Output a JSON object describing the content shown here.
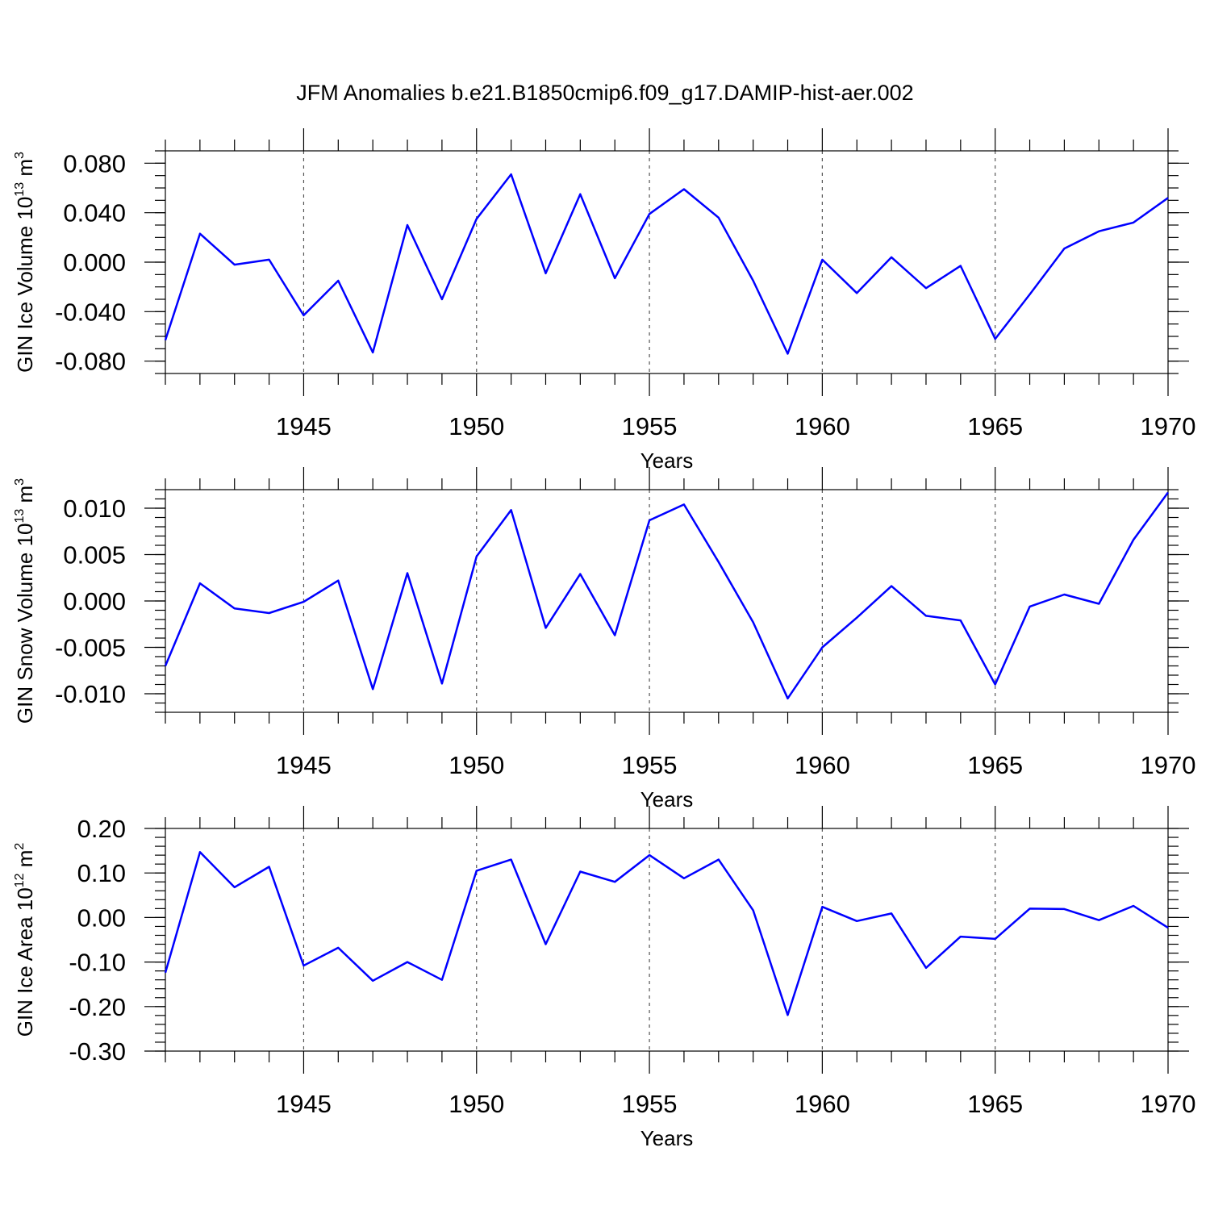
{
  "figure": {
    "title": "JFM Anomalies b.e21.B1850cmip6.f09_g17.DAMIP-hist-aer.002"
  },
  "colors": {
    "line": "#0000ff",
    "axes": "#000000",
    "grid": "#555555"
  },
  "chart_data": [
    {
      "type": "line",
      "title": "",
      "xlabel": "Years",
      "ylabel": {
        "text": "GIN Ice Volume 10",
        "exp": "13",
        "unit": " m",
        "unit_exp": "3"
      },
      "xlim": [
        1941,
        1970
      ],
      "ylim": [
        -0.09,
        0.09
      ],
      "xticks": [
        1945,
        1950,
        1955,
        1960,
        1965,
        1970
      ],
      "xtick_labels": [
        "1945",
        "1950",
        "1955",
        "1960",
        "1965",
        "1970"
      ],
      "yticks": [
        0.08,
        0.04,
        0.0,
        -0.04,
        -0.08
      ],
      "ytick_labels": [
        "0.080",
        "0.040",
        "0.000",
        "-0.040",
        "-0.080"
      ],
      "y_minor_step": 0.01,
      "grid": "vertical dashed at major x ticks",
      "x": [
        1941,
        1942,
        1943,
        1944,
        1945,
        1946,
        1947,
        1948,
        1949,
        1950,
        1951,
        1952,
        1953,
        1954,
        1955,
        1956,
        1957,
        1958,
        1959,
        1960,
        1961,
        1962,
        1963,
        1964,
        1965,
        1966,
        1967,
        1968,
        1969,
        1970
      ],
      "series": [
        {
          "values": [
            -0.063,
            0.023,
            -0.002,
            0.002,
            -0.043,
            -0.015,
            -0.073,
            0.03,
            -0.03,
            0.035,
            0.071,
            -0.009,
            0.055,
            -0.013,
            0.039,
            0.059,
            0.036,
            -0.015,
            -0.074,
            0.002,
            -0.025,
            0.004,
            -0.021,
            -0.003,
            -0.062,
            -0.026,
            0.011,
            0.025,
            0.032,
            0.052
          ]
        }
      ]
    },
    {
      "type": "line",
      "title": "",
      "xlabel": "Years",
      "ylabel": {
        "text": "GIN Snow Volume 10",
        "exp": "13",
        "unit": " m",
        "unit_exp": "3"
      },
      "xlim": [
        1941,
        1970
      ],
      "ylim": [
        -0.012,
        0.012
      ],
      "xticks": [
        1945,
        1950,
        1955,
        1960,
        1965,
        1970
      ],
      "xtick_labels": [
        "1945",
        "1950",
        "1955",
        "1960",
        "1965",
        "1970"
      ],
      "yticks": [
        0.01,
        0.005,
        0.0,
        -0.005,
        -0.01
      ],
      "ytick_labels": [
        "0.010",
        "0.005",
        "0.000",
        "-0.005",
        "-0.010"
      ],
      "y_minor_step": 0.001,
      "grid": "vertical dashed at major x ticks",
      "x": [
        1941,
        1942,
        1943,
        1944,
        1945,
        1946,
        1947,
        1948,
        1949,
        1950,
        1951,
        1952,
        1953,
        1954,
        1955,
        1956,
        1957,
        1958,
        1959,
        1960,
        1961,
        1962,
        1963,
        1964,
        1965,
        1966,
        1967,
        1968,
        1969,
        1970
      ],
      "series": [
        {
          "values": [
            -0.007,
            0.0019,
            -0.0008,
            -0.0013,
            -0.0001,
            0.0022,
            -0.0095,
            0.003,
            -0.0089,
            0.0048,
            0.0098,
            -0.0029,
            0.0029,
            -0.0037,
            0.0087,
            0.0104,
            0.0042,
            -0.0023,
            -0.0105,
            -0.005,
            -0.0018,
            0.0016,
            -0.0016,
            -0.0021,
            -0.009,
            -0.0006,
            0.0007,
            -0.0003,
            0.0066,
            0.0117
          ]
        }
      ]
    },
    {
      "type": "line",
      "title": "",
      "xlabel": "Years",
      "ylabel": {
        "text": "GIN Ice Area 10",
        "exp": "12",
        "unit": " m",
        "unit_exp": "2"
      },
      "xlim": [
        1941,
        1970
      ],
      "ylim": [
        -0.3,
        0.2
      ],
      "xticks": [
        1945,
        1950,
        1955,
        1960,
        1965,
        1970
      ],
      "xtick_labels": [
        "1945",
        "1950",
        "1955",
        "1960",
        "1965",
        "1970"
      ],
      "yticks": [
        0.2,
        0.1,
        0.0,
        -0.1,
        -0.2,
        -0.3
      ],
      "ytick_labels": [
        "0.20",
        "0.10",
        "0.00",
        "-0.10",
        "-0.20",
        "-0.30"
      ],
      "y_minor_step": 0.02,
      "grid": "vertical dashed at major x ticks",
      "x": [
        1941,
        1942,
        1943,
        1944,
        1945,
        1946,
        1947,
        1948,
        1949,
        1950,
        1951,
        1952,
        1953,
        1954,
        1955,
        1956,
        1957,
        1958,
        1959,
        1960,
        1961,
        1962,
        1963,
        1964,
        1965,
        1966,
        1967,
        1968,
        1969,
        1970
      ],
      "series": [
        {
          "values": [
            -0.124,
            0.147,
            0.068,
            0.114,
            -0.108,
            -0.068,
            -0.142,
            -0.1,
            -0.14,
            0.105,
            0.13,
            -0.06,
            0.103,
            0.08,
            0.14,
            0.088,
            0.13,
            0.016,
            -0.219,
            0.024,
            -0.008,
            0.009,
            -0.113,
            -0.043,
            -0.048,
            0.02,
            0.019,
            -0.006,
            0.026,
            -0.023
          ]
        }
      ]
    }
  ]
}
